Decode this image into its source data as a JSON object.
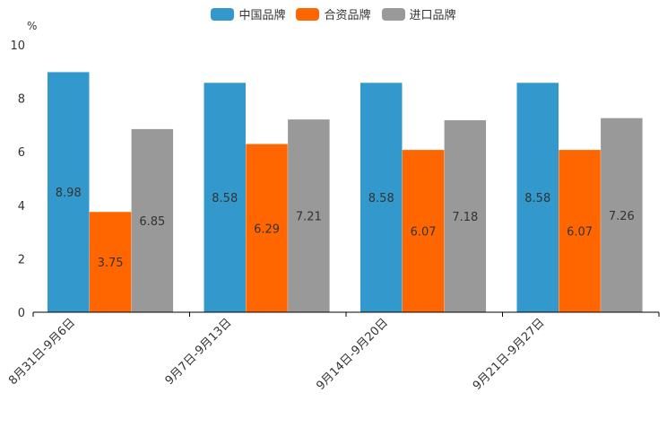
{
  "chart_data": {
    "type": "bar",
    "ylabel": "%",
    "ylim": [
      0,
      10
    ],
    "yticks": [
      "0",
      "2",
      "4",
      "6",
      "8",
      "10"
    ],
    "categories": [
      "8月31日-9月6日",
      "9月7日-9月13日",
      "9月14日-9月20日",
      "9月21日-9月27日"
    ],
    "series": [
      {
        "name": "中国品牌",
        "color": "#3399CC",
        "values": [
          8.98,
          8.58,
          8.58,
          8.58
        ],
        "labels": [
          "8.98",
          "8.58",
          "8.58",
          "8.58"
        ]
      },
      {
        "name": "合资品牌",
        "color": "#FF6600",
        "values": [
          3.75,
          6.29,
          6.07,
          6.07
        ],
        "labels": [
          "3.75",
          "6.29",
          "6.07",
          "6.07"
        ]
      },
      {
        "name": "进口品牌",
        "color": "#999999",
        "values": [
          6.85,
          7.21,
          7.18,
          7.26
        ],
        "labels": [
          "6.85",
          "7.21",
          "7.18",
          "7.26"
        ]
      }
    ],
    "legend": "top-center",
    "grid": false
  }
}
